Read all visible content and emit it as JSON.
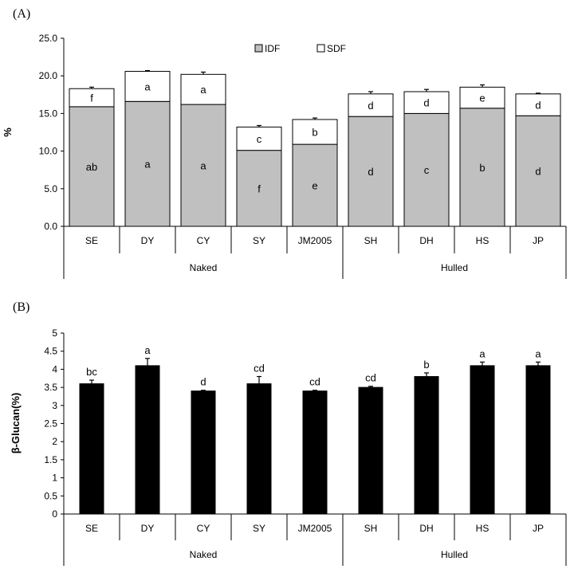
{
  "chart_data": [
    {
      "type": "bar",
      "stacked": true,
      "panel_label": "(A)",
      "ylabel": "%",
      "ylim": [
        0,
        25
      ],
      "y_ticks": [
        "0.0",
        "5.0",
        "10.0",
        "15.0",
        "20.0",
        "25.0"
      ],
      "categories": [
        "SE",
        "DY",
        "CY",
        "SY",
        "JM2005",
        "SH",
        "DH",
        "HS",
        "JP"
      ],
      "groups": [
        {
          "name": "Naked",
          "categories": [
            "SE",
            "DY",
            "CY",
            "SY",
            "JM2005"
          ]
        },
        {
          "name": "Hulled",
          "categories": [
            "SH",
            "DH",
            "HS",
            "JP"
          ]
        }
      ],
      "legend": {
        "position": "top-center"
      },
      "series": [
        {
          "name": "IDF",
          "color": "#c0c0c0",
          "values": [
            15.9,
            16.6,
            16.2,
            10.1,
            10.9,
            14.6,
            15.0,
            15.7,
            14.7
          ],
          "errors": [
            0.1,
            0.5,
            0.3,
            0.3,
            0.1,
            0.2,
            0.2,
            0.2,
            0.1
          ],
          "labels": [
            "ab",
            "a",
            "a",
            "f",
            "e",
            "d",
            "c",
            "b",
            "d"
          ]
        },
        {
          "name": "SDF",
          "color": "#ffffff",
          "values": [
            2.4,
            4.0,
            4.0,
            3.1,
            3.3,
            3.0,
            2.9,
            2.8,
            2.9
          ],
          "errors": [
            0.2,
            0.1,
            0.3,
            0.2,
            0.2,
            0.3,
            0.3,
            0.3,
            0.1
          ],
          "labels": [
            "f",
            "a",
            "a",
            "c",
            "b",
            "d",
            "d",
            "e",
            "d"
          ]
        }
      ]
    },
    {
      "type": "bar",
      "panel_label": "(B)",
      "ylabel": "β-Glucan(%)",
      "ylim": [
        0,
        5
      ],
      "y_ticks": [
        "0",
        "0.5",
        "1",
        "1.5",
        "2",
        "2.5",
        "3",
        "3.5",
        "4",
        "4.5",
        "5"
      ],
      "categories": [
        "SE",
        "DY",
        "CY",
        "SY",
        "JM2005",
        "SH",
        "DH",
        "HS",
        "JP"
      ],
      "groups": [
        {
          "name": "Naked",
          "categories": [
            "SE",
            "DY",
            "CY",
            "SY",
            "JM2005"
          ]
        },
        {
          "name": "Hulled",
          "categories": [
            "SH",
            "DH",
            "HS",
            "JP"
          ]
        }
      ],
      "series": [
        {
          "color": "#000000",
          "values": [
            3.6,
            4.1,
            3.4,
            3.6,
            3.4,
            3.5,
            3.8,
            4.1,
            4.1
          ],
          "errors": [
            0.1,
            0.2,
            0.02,
            0.2,
            0.02,
            0.03,
            0.1,
            0.1,
            0.1
          ],
          "labels": [
            "bc",
            "a",
            "d",
            "cd",
            "cd",
            "cd",
            "b",
            "a",
            "a"
          ]
        }
      ]
    }
  ]
}
